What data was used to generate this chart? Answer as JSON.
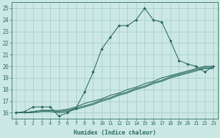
{
  "xlabel": "Humidex (Indice chaleur)",
  "xlim": [
    -0.5,
    23.5
  ],
  "ylim": [
    15.5,
    25.5
  ],
  "yticks": [
    16,
    17,
    18,
    19,
    20,
    21,
    22,
    23,
    24,
    25
  ],
  "xticks": [
    0,
    1,
    2,
    3,
    4,
    5,
    6,
    7,
    8,
    9,
    10,
    11,
    12,
    13,
    14,
    15,
    16,
    17,
    18,
    19,
    20,
    21,
    22,
    23
  ],
  "background_color": "#cce8e4",
  "grid_color": "#a8ceca",
  "line_color": "#2a6b60",
  "line1_x": [
    0,
    1,
    2,
    3,
    4,
    5,
    6,
    7,
    8,
    9,
    10,
    11,
    12,
    13,
    14,
    15,
    16,
    17,
    18,
    19,
    20,
    21,
    22,
    23
  ],
  "line1_y": [
    16.0,
    16.1,
    16.5,
    16.5,
    16.5,
    15.7,
    16.0,
    16.4,
    17.8,
    19.5,
    21.5,
    22.5,
    23.5,
    23.5,
    24.0,
    25.0,
    24.0,
    23.8,
    22.2,
    20.5,
    20.2,
    20.0,
    19.5,
    20.0
  ],
  "line2_x": [
    0,
    1,
    2,
    3,
    4,
    5,
    6,
    7,
    8,
    9,
    10,
    11,
    12,
    13,
    14,
    15,
    16,
    17,
    18,
    19,
    20,
    21,
    22,
    23
  ],
  "line2_y": [
    16.0,
    16.0,
    16.1,
    16.2,
    16.2,
    16.2,
    16.3,
    16.5,
    16.8,
    17.0,
    17.2,
    17.5,
    17.7,
    18.0,
    18.2,
    18.5,
    18.7,
    19.0,
    19.2,
    19.4,
    19.6,
    19.8,
    20.0,
    20.0
  ],
  "line3_x": [
    0,
    1,
    2,
    3,
    4,
    5,
    6,
    7,
    8,
    9,
    10,
    11,
    12,
    13,
    14,
    15,
    16,
    17,
    18,
    19,
    20,
    21,
    22,
    23
  ],
  "line3_y": [
    16.0,
    16.0,
    16.1,
    16.2,
    16.2,
    16.1,
    16.2,
    16.4,
    16.6,
    16.8,
    17.1,
    17.3,
    17.6,
    17.8,
    18.1,
    18.3,
    18.6,
    18.8,
    19.1,
    19.3,
    19.5,
    19.7,
    19.9,
    19.9
  ],
  "line4_x": [
    0,
    1,
    2,
    3,
    4,
    5,
    6,
    7,
    8,
    9,
    10,
    11,
    12,
    13,
    14,
    15,
    16,
    17,
    18,
    19,
    20,
    21,
    22,
    23
  ],
  "line4_y": [
    16.0,
    16.0,
    16.0,
    16.1,
    16.1,
    16.0,
    16.1,
    16.3,
    16.5,
    16.7,
    17.0,
    17.2,
    17.5,
    17.7,
    18.0,
    18.2,
    18.5,
    18.7,
    19.0,
    19.2,
    19.4,
    19.6,
    19.8,
    19.8
  ]
}
